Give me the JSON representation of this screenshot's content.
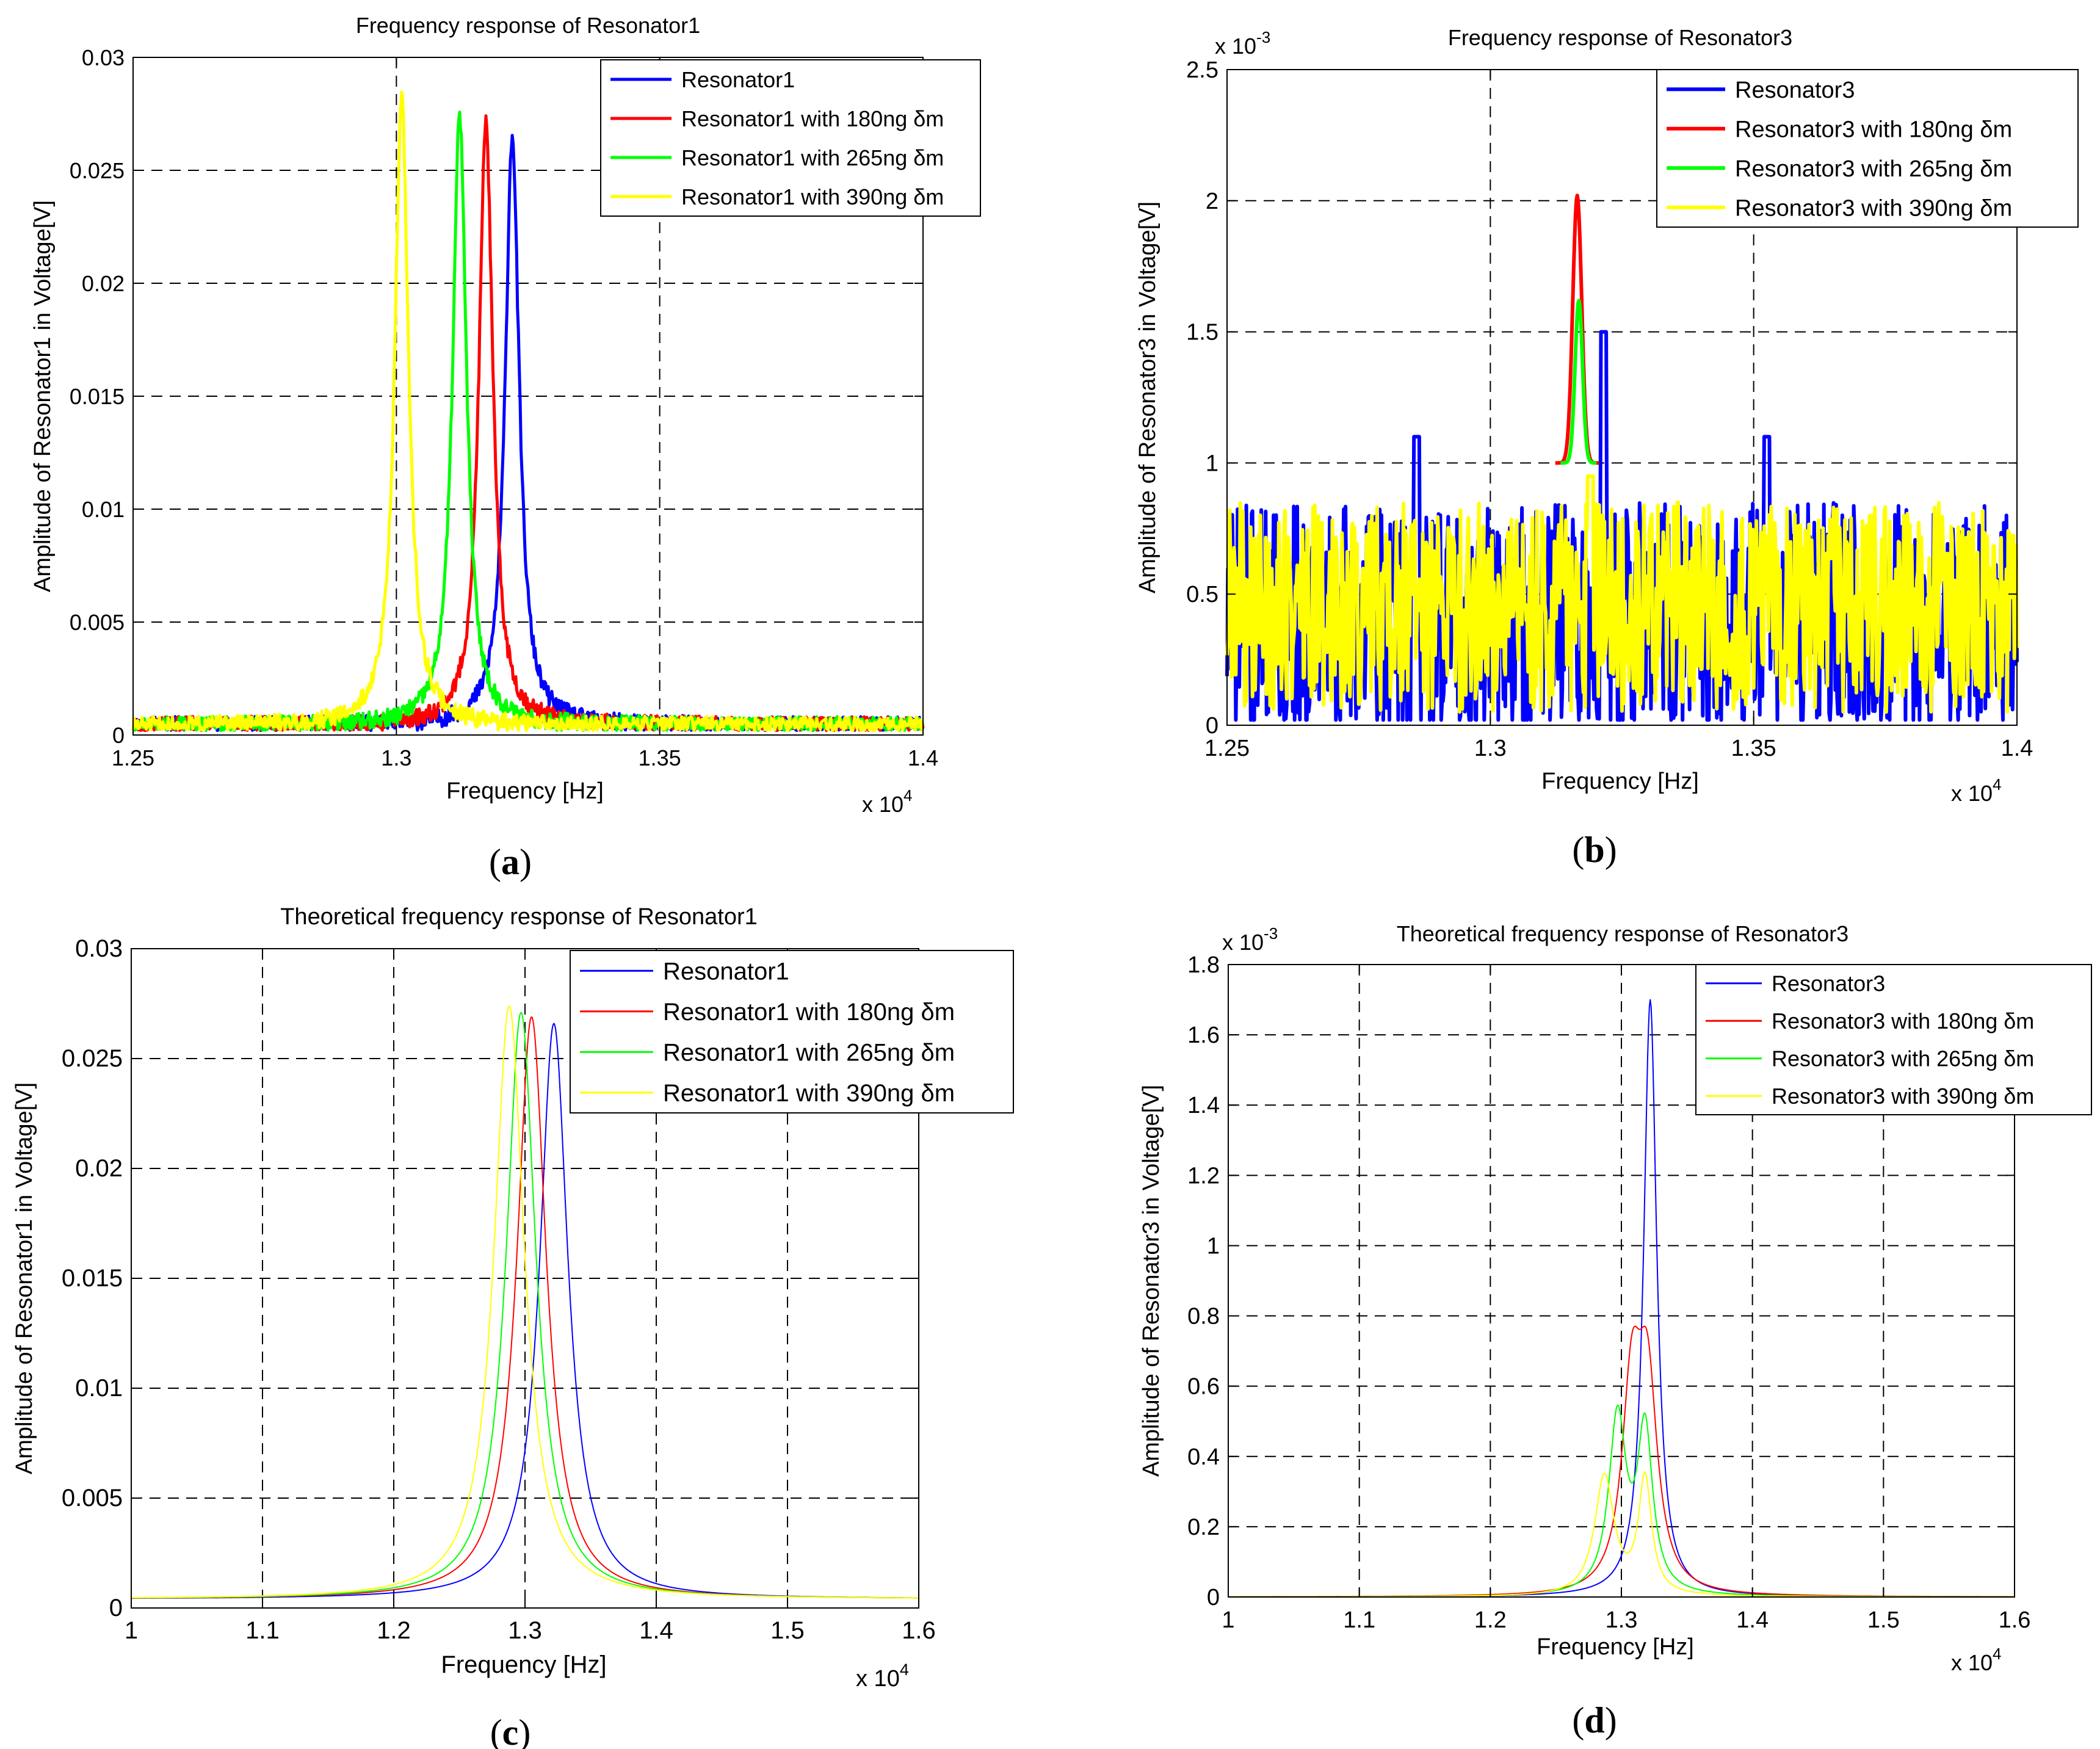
{
  "colors": {
    "blue": "#0000ff",
    "red": "#ff0000",
    "green": "#00ff00",
    "yellow": "#ffff00",
    "axis": "#000000",
    "grid": "#000000"
  },
  "chart_data": [
    {
      "id": "a",
      "type": "line",
      "caption": "a",
      "title": "Frequency response of Resonator1",
      "xlabel": "Frequency [Hz]",
      "ylabel": "Amplitude of Resonator1 in Voltage[V]",
      "x_multiplier": "x 10",
      "x_multiplier_exp": "4",
      "y_multiplier": "",
      "y_multiplier_exp": "",
      "xlim": [
        1.25,
        1.4
      ],
      "ylim": [
        0,
        0.03
      ],
      "xticks": [
        1.25,
        1.3,
        1.35,
        1.4
      ],
      "xtick_labels": [
        "1.25",
        "1.3",
        "1.35",
        "1.4"
      ],
      "yticks": [
        0,
        0.005,
        0.01,
        0.015,
        0.02,
        0.025,
        0.03
      ],
      "ytick_labels": [
        "0",
        "0.005",
        "0.01",
        "0.015",
        "0.02",
        "0.025",
        "0.03"
      ],
      "grid": true,
      "legend_position": "top-right",
      "series": [
        {
          "name": "Resonator1",
          "color": "blue",
          "model": "noisy_peak",
          "peak_x": 1.322,
          "peak_y": 0.0262,
          "half_width": 0.0016,
          "noise": 0.0004,
          "baseline": 0.0004,
          "seed": 11
        },
        {
          "name": "Resonator1 with 180ng δm",
          "color": "red",
          "model": "noisy_peak",
          "peak_x": 1.317,
          "peak_y": 0.0268,
          "half_width": 0.0016,
          "noise": 0.0004,
          "baseline": 0.0004,
          "seed": 23
        },
        {
          "name": "Resonator1 with 265ng δm",
          "color": "green",
          "model": "noisy_peak",
          "peak_x": 1.312,
          "peak_y": 0.027,
          "half_width": 0.0016,
          "noise": 0.0004,
          "baseline": 0.0004,
          "seed": 37
        },
        {
          "name": "Resonator1 with 390ng δm",
          "color": "yellow",
          "model": "noisy_peak",
          "peak_x": 1.301,
          "peak_y": 0.0278,
          "half_width": 0.0016,
          "noise": 0.0004,
          "baseline": 0.0004,
          "seed": 51
        }
      ]
    },
    {
      "id": "b",
      "type": "line",
      "caption": "b",
      "title": "Frequency response of Resonator3",
      "xlabel": "Frequency [Hz]",
      "ylabel": "Amplitude of Resonator3 in Voltage[V]",
      "x_multiplier": "x 10",
      "x_multiplier_exp": "4",
      "y_multiplier": "x 10",
      "y_multiplier_exp": "-3",
      "xlim": [
        1.25,
        1.4
      ],
      "ylim": [
        0,
        2.5
      ],
      "xticks": [
        1.25,
        1.3,
        1.35,
        1.4
      ],
      "xtick_labels": [
        "1.25",
        "1.3",
        "1.35",
        "1.4"
      ],
      "yticks": [
        0,
        0.5,
        1,
        1.5,
        2,
        2.5
      ],
      "ytick_labels": [
        "0",
        "0.5",
        "1",
        "1.5",
        "2",
        "2.5"
      ],
      "grid": true,
      "legend_position": "top-right",
      "series": [
        {
          "name": "Resonator3",
          "color": "blue",
          "model": "noise",
          "mean": 0.4,
          "noise": 0.45,
          "spikes": [
            [
              1.286,
              1.1
            ],
            [
              1.3215,
              1.5
            ],
            [
              1.3525,
              1.1
            ]
          ],
          "seed": 71
        },
        {
          "name": "Resonator3 with 180ng δm",
          "color": "red",
          "model": "spike",
          "peak_x": 1.3165,
          "peak_y": 2.02,
          "half_width": 0.0012
        },
        {
          "name": "Resonator3 with 265ng δm",
          "color": "green",
          "model": "spike",
          "peak_x": 1.3168,
          "peak_y": 1.62,
          "half_width": 0.001
        },
        {
          "name": "Resonator3 with 390ng δm",
          "color": "yellow",
          "model": "noise",
          "mean": 0.45,
          "noise": 0.4,
          "spikes": [
            [
              1.319,
              0.95
            ]
          ],
          "seed": 89
        }
      ]
    },
    {
      "id": "c",
      "type": "line",
      "caption": "c",
      "title": "Theoretical frequency response of Resonator1",
      "xlabel": "Frequency [Hz]",
      "ylabel": "Amplitude of Resonator1 in Voltage[V]",
      "x_multiplier": "x 10",
      "x_multiplier_exp": "4",
      "y_multiplier": "",
      "y_multiplier_exp": "",
      "xlim": [
        1,
        1.6
      ],
      "ylim": [
        0,
        0.03
      ],
      "xticks": [
        1,
        1.1,
        1.2,
        1.3,
        1.4,
        1.5,
        1.6
      ],
      "xtick_labels": [
        "1",
        "1.1",
        "1.2",
        "1.3",
        "1.4",
        "1.5",
        "1.6"
      ],
      "yticks": [
        0,
        0.005,
        0.01,
        0.015,
        0.02,
        0.025,
        0.03
      ],
      "ytick_labels": [
        "0",
        "0.005",
        "0.01",
        "0.015",
        "0.02",
        "0.025",
        "0.03"
      ],
      "grid": true,
      "legend_position": "top-right",
      "series": [
        {
          "name": "Resonator1",
          "color": "blue",
          "model": "lorentz",
          "peak_x": 1.322,
          "peak_y": 0.0262,
          "gamma": 0.013,
          "floor": 0.0004
        },
        {
          "name": "Resonator1 with 180ng δm",
          "color": "red",
          "model": "lorentz",
          "peak_x": 1.305,
          "peak_y": 0.0265,
          "gamma": 0.0135,
          "floor": 0.0004
        },
        {
          "name": "Resonator1 with 265ng δm",
          "color": "green",
          "model": "lorentz",
          "peak_x": 1.297,
          "peak_y": 0.0267,
          "gamma": 0.0137,
          "floor": 0.0004
        },
        {
          "name": "Resonator1 with 390ng δm",
          "color": "yellow",
          "model": "lorentz",
          "peak_x": 1.288,
          "peak_y": 0.027,
          "gamma": 0.014,
          "floor": 0.0004
        }
      ]
    },
    {
      "id": "d",
      "type": "line",
      "caption": "d",
      "title": "Theoretical frequency response of Resonator3",
      "xlabel": "Frequency [Hz]",
      "ylabel": "Amplitude of Resonator3 in Voltage[V]",
      "x_multiplier": "x 10",
      "x_multiplier_exp": "4",
      "y_multiplier": "x 10",
      "y_multiplier_exp": "-3",
      "xlim": [
        1,
        1.6
      ],
      "ylim": [
        0,
        1.8
      ],
      "xticks": [
        1,
        1.1,
        1.2,
        1.3,
        1.4,
        1.5,
        1.6
      ],
      "xtick_labels": [
        "1",
        "1.1",
        "1.2",
        "1.3",
        "1.4",
        "1.5",
        "1.6"
      ],
      "yticks": [
        0,
        0.2,
        0.4,
        0.6,
        0.8,
        1,
        1.2,
        1.4,
        1.6,
        1.8
      ],
      "ytick_labels": [
        "0",
        "0.2",
        "0.4",
        "0.6",
        "0.8",
        "1",
        "1.2",
        "1.4",
        "1.6",
        "1.8"
      ],
      "grid": true,
      "legend_position": "top-right",
      "series": [
        {
          "name": "Resonator3",
          "color": "blue",
          "model": "lorentz_sum",
          "floor": 0,
          "peaks": [
            [
              1.322,
              1.7,
              0.006
            ]
          ]
        },
        {
          "name": "Resonator3 with 180ng δm",
          "color": "red",
          "model": "lorentz_sum",
          "floor": 0,
          "peaks": [
            [
              1.308,
              0.55,
              0.009
            ],
            [
              1.32,
              0.55,
              0.009
            ]
          ]
        },
        {
          "name": "Resonator3 with 265ng δm",
          "color": "green",
          "model": "lorentz_sum",
          "floor": 0,
          "peaks": [
            [
              1.297,
              0.5,
              0.008
            ],
            [
              1.318,
              0.46,
              0.007
            ]
          ]
        },
        {
          "name": "Resonator3 with 390ng δm",
          "color": "yellow",
          "model": "lorentz_sum",
          "floor": 0,
          "peaks": [
            [
              1.287,
              0.34,
              0.009
            ],
            [
              1.318,
              0.33,
              0.006
            ]
          ]
        }
      ]
    }
  ]
}
